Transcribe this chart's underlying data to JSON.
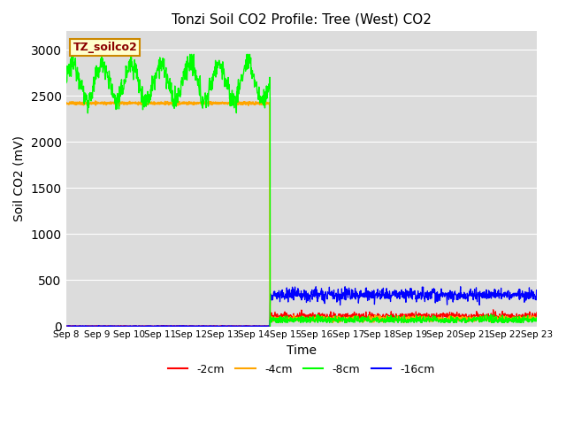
{
  "title": "Tonzi Soil CO2 Profile: Tree (West) CO2",
  "ylabel": "Soil CO2 (mV)",
  "xlabel": "Time",
  "annotation": "TZ_soilco2",
  "bg_color": "#dcdcdc",
  "ylim": [
    0,
    3200
  ],
  "yticks": [
    0,
    500,
    1000,
    1500,
    2000,
    2500,
    3000
  ],
  "legend_labels": [
    "-2cm",
    "-4cm",
    "-8cm",
    "-16cm"
  ],
  "colors": {
    "neg2cm": "#ff0000",
    "neg4cm": "#ffa500",
    "neg8cm": "#00ff00",
    "neg16cm": "#0000ff"
  },
  "x_tick_labels": [
    "Sep 8",
    "Sep 9",
    "Sep 10",
    "Sep 11",
    "Sep 12",
    "Sep 13",
    "Sep 14",
    "Sep 15",
    "Sep 16",
    "Sep 17",
    "Sep 18",
    "Sep 19",
    "Sep 20",
    "Sep 21",
    "Sep 22",
    "Sep 23"
  ],
  "drop_day": 6.5,
  "n_days": 15,
  "neg8_base": 2650,
  "neg8_amp": 200,
  "neg4_flat": 2420,
  "neg2_after_base": 110,
  "neg4_after_base": 80,
  "neg8_after_base": 70,
  "neg16_after_base": 340
}
